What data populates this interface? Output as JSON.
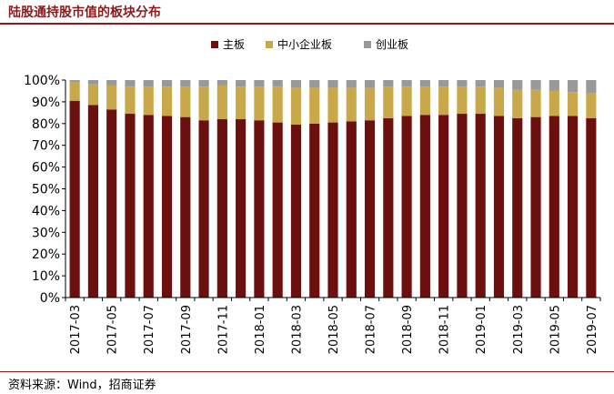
{
  "title": "陆股通持股市值的板块分布",
  "source": "资料来源：Wind，招商证券",
  "chart_data": {
    "type": "bar",
    "stacked": true,
    "title": "陆股通持股市值的板块分布",
    "xlabel": "",
    "ylabel": "",
    "ylim": [
      0,
      100
    ],
    "yticks": [
      0,
      10,
      20,
      30,
      40,
      50,
      60,
      70,
      80,
      90,
      100
    ],
    "ytick_suffix": "%",
    "grid": false,
    "legend": "top",
    "x_tick_labels": [
      "2017-03",
      "2017-05",
      "2017-07",
      "2017-09",
      "2017-11",
      "2018-01",
      "2018-03",
      "2018-05",
      "2018-07",
      "2018-09",
      "2018-11",
      "2019-01",
      "2019-03",
      "2019-05",
      "2019-07"
    ],
    "categories": [
      "2017-03",
      "2017-04",
      "2017-05",
      "2017-06",
      "2017-07",
      "2017-08",
      "2017-09",
      "2017-10",
      "2017-11",
      "2017-12",
      "2018-01",
      "2018-02",
      "2018-03",
      "2018-04",
      "2018-05",
      "2018-06",
      "2018-07",
      "2018-08",
      "2018-09",
      "2018-10",
      "2018-11",
      "2018-12",
      "2019-01",
      "2019-02",
      "2019-03",
      "2019-04",
      "2019-05",
      "2019-06",
      "2019-07"
    ],
    "series": [
      {
        "name": "主板",
        "color": "#6B0F0F",
        "values": [
          90.5,
          88.5,
          86.5,
          84.5,
          84.0,
          83.5,
          83.0,
          81.5,
          82.0,
          82.0,
          81.5,
          80.5,
          79.5,
          80.0,
          80.5,
          81.0,
          81.5,
          82.5,
          83.5,
          84.0,
          84.0,
          84.5,
          84.5,
          83.5,
          82.5,
          83.0,
          83.5,
          83.5,
          82.5
        ]
      },
      {
        "name": "中小企业板",
        "color": "#C9A84A",
        "values": [
          8.5,
          9.5,
          11.0,
          12.5,
          13.0,
          13.5,
          14.0,
          15.5,
          15.5,
          15.0,
          15.5,
          16.5,
          17.0,
          16.5,
          16.0,
          15.5,
          15.0,
          14.5,
          13.5,
          13.0,
          13.0,
          12.5,
          12.5,
          13.0,
          13.0,
          12.5,
          11.5,
          11.0,
          11.5
        ]
      },
      {
        "name": "创业板",
        "color": "#999999",
        "values": [
          1.0,
          2.0,
          2.5,
          3.0,
          3.0,
          3.0,
          3.0,
          3.0,
          2.5,
          3.0,
          3.0,
          3.0,
          3.5,
          3.5,
          3.5,
          3.5,
          3.5,
          3.0,
          3.0,
          3.0,
          3.0,
          3.0,
          3.0,
          3.5,
          4.5,
          4.5,
          5.0,
          5.5,
          6.0
        ]
      }
    ]
  }
}
